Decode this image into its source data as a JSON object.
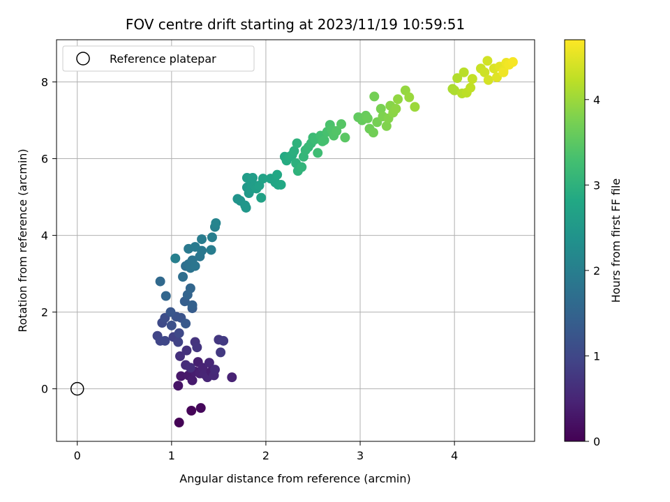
{
  "chart_data": {
    "type": "scatter",
    "title": "FOV centre drift starting at 2023/11/19 10:59:51",
    "xlabel": "Angular distance from reference (arcmin)",
    "ylabel": "Rotation from reference (arcmin)",
    "xlim": [
      -0.22,
      4.85
    ],
    "ylim": [
      -1.37,
      9.1
    ],
    "xticks": [
      0,
      1,
      2,
      3,
      4
    ],
    "yticks": [
      0,
      2,
      4,
      6,
      8
    ],
    "grid": true,
    "legend": {
      "placement": "top-left",
      "entries": [
        "Reference platepar"
      ]
    },
    "colorbar": {
      "label": "Hours from first FF file",
      "range": [
        0,
        4.7
      ],
      "ticks": [
        0,
        1,
        2,
        3,
        4
      ],
      "colormap": "viridis"
    },
    "reference_point": {
      "x": 0,
      "y": 0
    },
    "series": [
      {
        "points": [
          [
            1.08,
            -0.88,
            0.02
          ],
          [
            1.21,
            -0.57,
            0.06
          ],
          [
            1.31,
            -0.5,
            0.1
          ],
          [
            1.07,
            0.08,
            0.25
          ],
          [
            1.1,
            0.33,
            0.3
          ],
          [
            1.18,
            0.35,
            0.32
          ],
          [
            1.22,
            0.22,
            0.35
          ],
          [
            1.25,
            0.45,
            0.38
          ],
          [
            1.28,
            0.7,
            0.4
          ],
          [
            1.3,
            0.4,
            0.42
          ],
          [
            1.33,
            0.55,
            0.45
          ],
          [
            1.35,
            0.38,
            0.48
          ],
          [
            1.38,
            0.3,
            0.5
          ],
          [
            1.4,
            0.68,
            0.52
          ],
          [
            1.42,
            0.45,
            0.4
          ],
          [
            1.45,
            0.35,
            0.55
          ],
          [
            1.46,
            0.5,
            0.58
          ],
          [
            1.15,
            0.62,
            0.6
          ],
          [
            1.2,
            0.55,
            0.62
          ],
          [
            1.09,
            0.85,
            0.65
          ],
          [
            1.16,
            1.0,
            0.68
          ],
          [
            1.25,
            1.22,
            0.7
          ],
          [
            1.27,
            1.08,
            0.72
          ],
          [
            1.5,
            1.28,
            0.75
          ],
          [
            1.52,
            0.95,
            0.78
          ],
          [
            1.55,
            1.25,
            0.8
          ],
          [
            1.64,
            0.3,
            0.45
          ],
          [
            1.02,
            1.35,
            0.9
          ],
          [
            1.07,
            1.22,
            0.92
          ],
          [
            0.85,
            1.38,
            0.95
          ],
          [
            0.88,
            1.25,
            0.98
          ],
          [
            0.93,
            1.25,
            1.0
          ],
          [
            1.08,
            1.45,
            1.02
          ],
          [
            0.9,
            1.72,
            1.05
          ],
          [
            0.93,
            1.85,
            1.1
          ],
          [
            1.0,
            1.65,
            1.15
          ],
          [
            1.05,
            1.88,
            1.18
          ],
          [
            1.1,
            1.85,
            1.2
          ],
          [
            0.99,
            2.0,
            1.25
          ],
          [
            1.15,
            1.7,
            1.3
          ],
          [
            1.22,
            2.1,
            1.35
          ],
          [
            1.14,
            2.28,
            1.4
          ],
          [
            1.22,
            2.18,
            1.45
          ],
          [
            1.17,
            2.45,
            1.5
          ],
          [
            1.2,
            2.62,
            1.55
          ],
          [
            0.94,
            2.42,
            1.55
          ],
          [
            0.88,
            2.8,
            1.6
          ],
          [
            1.12,
            2.92,
            1.7
          ],
          [
            1.15,
            3.2,
            1.72
          ],
          [
            1.18,
            3.25,
            1.75
          ],
          [
            1.2,
            3.15,
            1.78
          ],
          [
            1.22,
            3.35,
            1.8
          ],
          [
            1.25,
            3.2,
            1.82
          ],
          [
            1.3,
            3.45,
            1.85
          ],
          [
            1.32,
            3.6,
            1.88
          ],
          [
            1.18,
            3.65,
            1.9
          ],
          [
            1.25,
            3.7,
            1.92
          ],
          [
            1.32,
            3.9,
            1.95
          ],
          [
            1.42,
            3.62,
            1.98
          ],
          [
            1.43,
            3.95,
            2.0
          ],
          [
            1.04,
            3.4,
            2.02
          ],
          [
            1.46,
            4.22,
            2.05
          ],
          [
            1.47,
            4.32,
            2.1
          ],
          [
            1.7,
            4.95,
            2.4
          ],
          [
            1.73,
            4.9,
            2.42
          ],
          [
            1.78,
            4.78,
            2.45
          ],
          [
            1.79,
            4.72,
            2.48
          ],
          [
            1.8,
            5.25,
            2.5
          ],
          [
            1.82,
            5.1,
            2.52
          ],
          [
            1.84,
            5.2,
            2.55
          ],
          [
            1.85,
            5.35,
            2.58
          ],
          [
            1.88,
            5.3,
            2.6
          ],
          [
            1.9,
            5.22,
            2.62
          ],
          [
            1.93,
            5.3,
            2.65
          ],
          [
            1.95,
            4.98,
            2.68
          ],
          [
            1.97,
            5.48,
            2.7
          ],
          [
            2.05,
            5.48,
            2.72
          ],
          [
            2.1,
            5.38,
            2.75
          ],
          [
            2.13,
            5.32,
            2.78
          ],
          [
            2.12,
            5.58,
            2.8
          ],
          [
            2.16,
            5.32,
            2.82
          ],
          [
            1.8,
            5.5,
            2.58
          ],
          [
            1.86,
            5.5,
            2.6
          ],
          [
            2.2,
            6.05,
            2.85
          ],
          [
            2.22,
            5.95,
            2.88
          ],
          [
            2.25,
            6.05,
            2.9
          ],
          [
            2.28,
            6.1,
            2.92
          ],
          [
            2.3,
            6.2,
            2.95
          ],
          [
            2.32,
            5.88,
            2.98
          ],
          [
            2.33,
            6.4,
            3.0
          ],
          [
            2.34,
            5.68,
            3.02
          ],
          [
            2.38,
            5.78,
            3.05
          ],
          [
            2.4,
            6.05,
            3.08
          ],
          [
            2.42,
            6.22,
            3.1
          ],
          [
            2.45,
            6.3,
            3.12
          ],
          [
            2.48,
            6.4,
            3.15
          ],
          [
            2.5,
            6.55,
            3.18
          ],
          [
            2.52,
            6.5,
            3.2
          ],
          [
            2.55,
            6.15,
            3.22
          ],
          [
            2.58,
            6.6,
            3.25
          ],
          [
            2.6,
            6.45,
            3.28
          ],
          [
            2.62,
            6.48,
            3.3
          ],
          [
            2.65,
            6.7,
            3.32
          ],
          [
            2.68,
            6.88,
            3.35
          ],
          [
            2.7,
            6.75,
            3.38
          ],
          [
            2.72,
            6.6,
            3.4
          ],
          [
            2.75,
            6.72,
            3.42
          ],
          [
            2.8,
            6.9,
            3.45
          ],
          [
            2.84,
            6.55,
            3.48
          ],
          [
            2.98,
            7.08,
            3.55
          ],
          [
            3.02,
            7.0,
            3.58
          ],
          [
            3.06,
            7.12,
            3.6
          ],
          [
            3.08,
            7.05,
            3.62
          ],
          [
            3.1,
            6.78,
            3.65
          ],
          [
            3.14,
            6.68,
            3.68
          ],
          [
            3.15,
            7.62,
            3.7
          ],
          [
            3.18,
            6.95,
            3.72
          ],
          [
            3.22,
            7.3,
            3.75
          ],
          [
            3.24,
            7.1,
            3.78
          ],
          [
            3.28,
            6.85,
            3.8
          ],
          [
            3.3,
            7.05,
            3.82
          ],
          [
            3.32,
            7.38,
            3.85
          ],
          [
            3.35,
            7.2,
            3.88
          ],
          [
            3.38,
            7.3,
            3.9
          ],
          [
            3.4,
            7.55,
            3.92
          ],
          [
            3.48,
            7.78,
            3.95
          ],
          [
            3.52,
            7.6,
            3.98
          ],
          [
            3.58,
            7.35,
            4.0
          ],
          [
            3.98,
            7.82,
            4.1
          ],
          [
            4.0,
            7.78,
            4.12
          ],
          [
            4.03,
            8.1,
            4.15
          ],
          [
            4.08,
            7.7,
            4.18
          ],
          [
            4.1,
            8.25,
            4.2
          ],
          [
            4.13,
            7.72,
            4.22
          ],
          [
            4.17,
            7.85,
            4.25
          ],
          [
            4.19,
            8.08,
            4.28
          ],
          [
            4.28,
            8.35,
            4.32
          ],
          [
            4.32,
            8.25,
            4.35
          ],
          [
            4.35,
            8.55,
            4.38
          ],
          [
            4.36,
            8.05,
            4.4
          ],
          [
            4.42,
            8.35,
            4.45
          ],
          [
            4.45,
            8.12,
            4.48
          ],
          [
            4.48,
            8.4,
            4.5
          ],
          [
            4.52,
            8.3,
            4.55
          ],
          [
            4.55,
            8.5,
            4.58
          ],
          [
            4.58,
            8.45,
            4.62
          ],
          [
            4.62,
            8.52,
            4.65
          ],
          [
            4.52,
            8.25,
            4.6
          ]
        ]
      }
    ]
  }
}
